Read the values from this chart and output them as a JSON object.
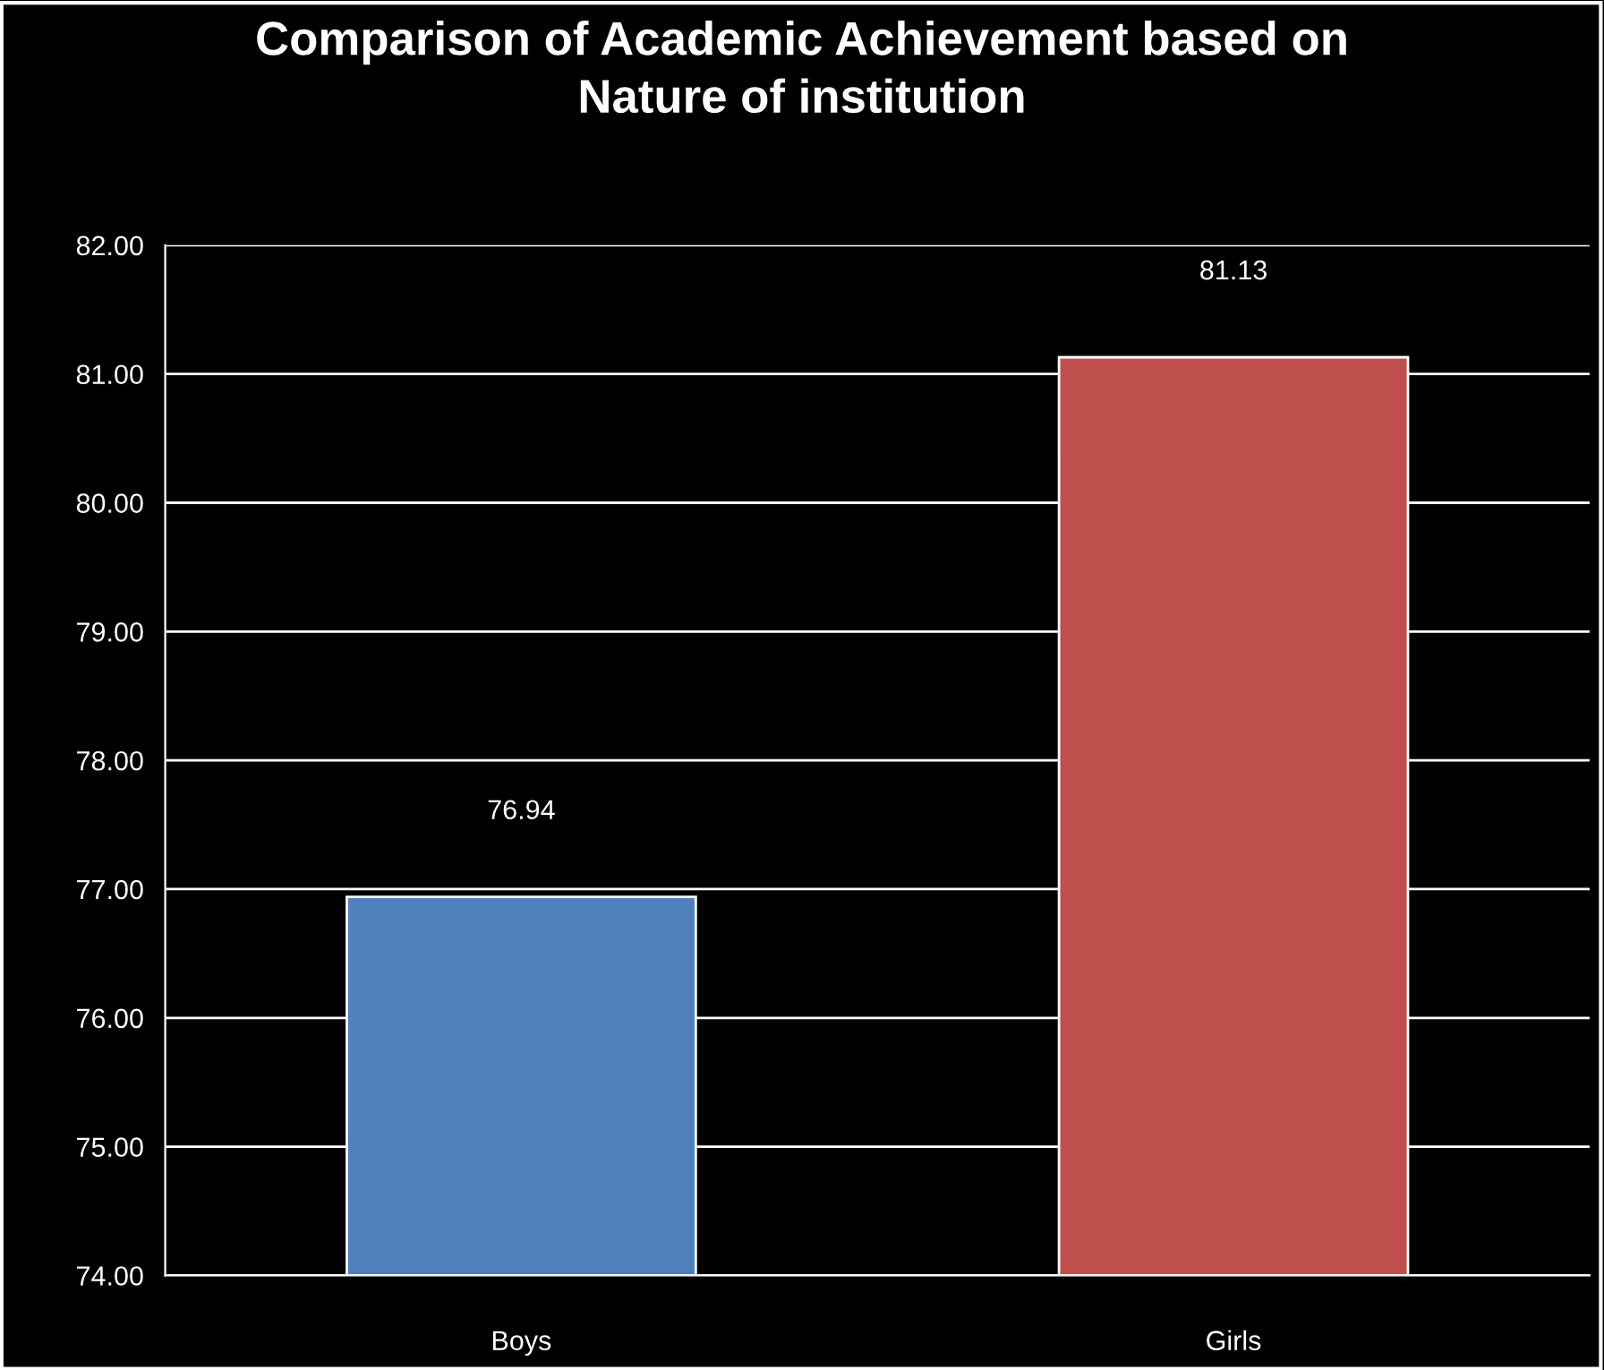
{
  "chart_data": {
    "type": "bar",
    "title": "Comparison of Academic Achievement based on\nNature of institution",
    "categories": [
      "Boys",
      "Girls"
    ],
    "values": [
      76.94,
      81.13
    ],
    "colors": [
      "#4f81bd",
      "#c0504d"
    ],
    "ylim": [
      74,
      82
    ],
    "yticks": [
      {
        "value": 74,
        "label": "74.00"
      },
      {
        "value": 75,
        "label": "75.00"
      },
      {
        "value": 76,
        "label": "76.00"
      },
      {
        "value": 77,
        "label": "77.00"
      },
      {
        "value": 78,
        "label": "78.00"
      },
      {
        "value": 79,
        "label": "79.00"
      },
      {
        "value": 80,
        "label": "80.00"
      },
      {
        "value": 81,
        "label": "81.00"
      },
      {
        "value": 82,
        "label": "82.00"
      }
    ],
    "grid": "y",
    "data_labels": true,
    "legend": false
  }
}
